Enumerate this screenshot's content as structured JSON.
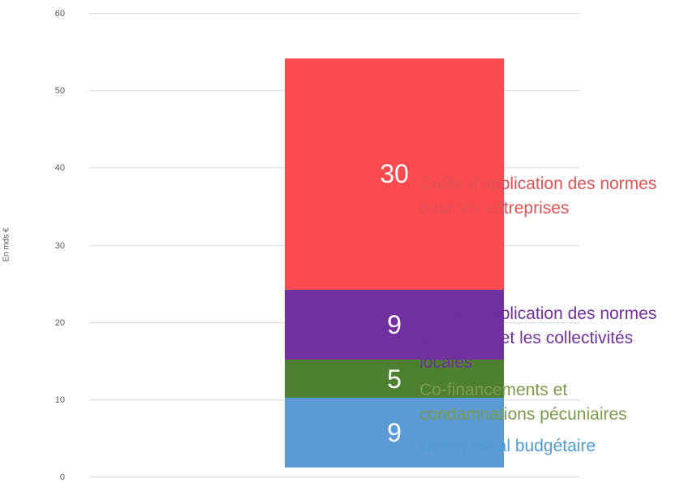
{
  "chart_data": {
    "type": "bar",
    "stacked": true,
    "title": "",
    "xlabel": "",
    "ylabel": "En mds €",
    "ylim": [
      0,
      60
    ],
    "yticks": [
      0,
      10,
      20,
      30,
      40,
      50,
      60
    ],
    "grid": true,
    "legend_position": "right-annotations",
    "categories": [
      ""
    ],
    "segments_bottom_to_top": [
      {
        "name": "Déficit fiscal budgétaire",
        "value": 9,
        "bar_color": "#5B9BD5",
        "label_color": "#4F9BD5",
        "label_lines": [
          "Déficit fiscal budgétaire"
        ]
      },
      {
        "name": "Co-financements et condamnations pécuniaires",
        "value": 5,
        "bar_color": "#4E8031",
        "label_color": "#7B9A4E",
        "label_lines": [
          "Co-financements et",
          "condamnations pécuniaires"
        ]
      },
      {
        "name": "Coûts d'application des normes pour l'État et les collectivités locales",
        "value": 9,
        "bar_color": "#7030A0",
        "label_color": "#7030A0",
        "label_lines": [
          "Coûts d'application des normes",
          "pour l'État et les collectivités",
          "locales"
        ]
      },
      {
        "name": "Coûts d'application des normes pour les entreprises",
        "value": 30,
        "bar_color": "#FB4B4F",
        "label_color": "#E05254",
        "label_lines": [
          "Coûts d'application des normes",
          "pour les entreprises"
        ]
      }
    ],
    "total": 53
  }
}
